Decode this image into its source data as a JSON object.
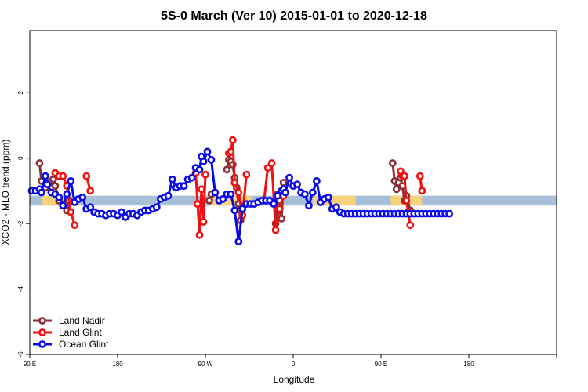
{
  "chart_data": {
    "type": "line",
    "title": "5S-0 March (Ver 10)   2015-01-01 to 2020-12-18",
    "xlabel": "Longitude",
    "ylabel": "XCO2 - MLO trend (ppm)",
    "xlim": [
      -90,
      180
    ],
    "ylim": [
      -6,
      3.9
    ],
    "x_ticks": [
      {
        "value": -90,
        "label": "90 E"
      },
      {
        "value": -45,
        "label": "180"
      },
      {
        "value": 0,
        "label": "90 W"
      },
      {
        "value": 45,
        "label": "0"
      },
      {
        "value": 90,
        "label": "90 E"
      },
      {
        "value": 135,
        "label": "180"
      }
    ],
    "y_ticks": [
      {
        "value": -6,
        "label": "-6"
      },
      {
        "value": -4,
        "label": "-4"
      },
      {
        "value": -2,
        "label": "-2"
      },
      {
        "value": 0,
        "label": "0"
      },
      {
        "value": 2,
        "label": "2"
      }
    ],
    "reference_band": {
      "y_min": -1.45,
      "y_max": -1.15,
      "color": "#a7bfd9"
    },
    "highlight_band": {
      "color": "#f8d27a",
      "segments": [
        [
          -84,
          -69
        ],
        [
          3,
          24
        ],
        [
          55,
          77
        ],
        [
          95,
          111
        ]
      ]
    },
    "series": [
      {
        "name": "Land Nadir",
        "color": "#8b2f35",
        "segments": [
          {
            "x": [
              -85,
              -84,
              -82,
              -80,
              -78,
              -77,
              -75
            ],
            "y": [
              -0.15,
              -0.7,
              -0.9,
              -0.75,
              -0.65,
              -0.85,
              -1.3
            ]
          },
          {
            "x": [
              -71,
              -70
            ],
            "y": [
              -1.6,
              -1.3
            ]
          },
          {
            "x": [
              2,
              3
            ],
            "y": [
              -1.3,
              -1.1
            ]
          },
          {
            "x": [
              11,
              12,
              13,
              14,
              15,
              16,
              17,
              18
            ],
            "y": [
              -0.35,
              -0.05,
              -0.1,
              -0.2,
              -0.6,
              -0.9,
              -1.4,
              -1.9
            ]
          },
          {
            "x": [
              36,
              37,
              38,
              39,
              40
            ],
            "y": [
              -2.0,
              -1.1,
              -1.3,
              -1.85,
              -0.75
            ]
          },
          {
            "x": [
              96,
              97,
              98,
              99,
              100,
              101,
              102,
              103,
              105
            ],
            "y": [
              -0.15,
              -0.7,
              -0.95,
              -0.75,
              -0.6,
              -0.85,
              -1.3,
              -1.15,
              -1.6
            ]
          }
        ]
      },
      {
        "name": "Land Glint",
        "color": "#f20f0f",
        "segments": [
          {
            "x": [
              -77,
              -75,
              -73,
              -71,
              -69,
              -67
            ],
            "y": [
              -0.45,
              -0.55,
              -0.55,
              -0.85,
              -1.65,
              -2.05
            ]
          },
          {
            "x": [
              -61,
              -59
            ],
            "y": [
              -0.55,
              -1.0
            ]
          },
          {
            "x": [
              -5,
              -4,
              -3,
              -2,
              -1,
              0
            ],
            "y": [
              -0.45,
              -1.4,
              -2.35,
              -0.95,
              -1.95,
              -0.5
            ]
          },
          {
            "x": [
              12,
              13,
              14,
              15,
              17,
              19,
              21
            ],
            "y": [
              0.15,
              0.2,
              0.55,
              -0.75,
              -1.05,
              -1.75,
              -0.5
            ]
          },
          {
            "x": [
              30,
              32,
              34,
              36,
              38,
              40
            ],
            "y": [
              -1.3,
              -0.3,
              -0.15,
              -2.2,
              -1.55,
              -1.15
            ]
          },
          {
            "x": [
              100,
              101,
              102,
              103,
              104,
              105
            ],
            "y": [
              -0.4,
              -0.55,
              -0.55,
              -1.3,
              -1.65,
              -2.05
            ]
          },
          {
            "x": [
              110,
              111
            ],
            "y": [
              -0.55,
              -1.0
            ]
          }
        ]
      },
      {
        "name": "Ocean Glint",
        "color": "#0a0ae6",
        "segments": [
          {
            "x": [
              -89,
              -87,
              -85,
              -84,
              -82,
              -81,
              -79,
              -77,
              -75,
              -73,
              -71,
              -69,
              -67,
              -65,
              -63,
              -61,
              -59,
              -57,
              -55,
              -53,
              -51,
              -49,
              -47,
              -45,
              -43,
              -41,
              -39,
              -37,
              -35,
              -33,
              -31,
              -29,
              -27,
              -25,
              -23,
              -21,
              -19,
              -17,
              -15,
              -13,
              -11,
              -9,
              -7,
              -5,
              -3,
              -2,
              -1,
              1,
              3,
              5,
              7,
              9,
              11,
              13,
              15,
              17,
              19,
              21,
              23,
              25,
              27,
              29,
              31,
              33,
              35,
              37,
              39,
              40,
              41,
              43,
              45,
              47,
              49,
              51,
              53,
              55,
              57,
              59,
              61,
              63,
              65,
              67,
              69,
              71,
              73,
              75,
              77,
              79,
              81,
              83,
              85,
              87,
              89,
              91,
              93,
              95,
              97,
              99,
              101,
              103,
              105,
              107,
              109,
              111,
              113,
              115,
              117,
              119,
              121,
              123,
              125
            ],
            "y": [
              -1.0,
              -1.0,
              -0.95,
              -1.05,
              -0.55,
              -0.8,
              -1.05,
              -1.1,
              -1.2,
              -1.45,
              -1.1,
              -0.7,
              -1.35,
              -1.25,
              -1.2,
              -1.55,
              -1.5,
              -1.65,
              -1.7,
              -1.7,
              -1.75,
              -1.7,
              -1.7,
              -1.75,
              -1.65,
              -1.8,
              -1.7,
              -1.7,
              -1.75,
              -1.65,
              -1.6,
              -1.6,
              -1.55,
              -1.5,
              -1.25,
              -1.2,
              -1.15,
              -0.65,
              -0.9,
              -0.85,
              -0.85,
              -0.65,
              -0.6,
              -0.3,
              -0.35,
              0.05,
              -0.1,
              0.2,
              -0.05,
              -1.05,
              -1.3,
              -1.25,
              -1.1,
              -1.1,
              -1.6,
              -2.55,
              -1.55,
              -1.4,
              -1.4,
              -1.4,
              -1.35,
              -1.3,
              -1.3,
              -1.3,
              -1.4,
              -1.15,
              -1.0,
              -0.95,
              -1.05,
              -0.6,
              -0.85,
              -0.8,
              -1.05,
              -1.1,
              -1.45,
              -1.05,
              -0.7,
              -1.35,
              -1.25,
              -1.2,
              -1.55,
              -1.5,
              -1.65,
              -1.7,
              -1.7,
              -1.7,
              -1.7,
              -1.7,
              -1.7,
              -1.7,
              -1.7,
              -1.7,
              -1.7,
              -1.7,
              -1.7,
              -1.7,
              -1.7,
              -1.7,
              -1.7,
              -1.7,
              -1.7,
              -1.7,
              -1.7,
              -1.7,
              -1.7,
              -1.7,
              -1.7,
              -1.7,
              -1.7,
              -1.7,
              -1.7
            ]
          }
        ]
      }
    ],
    "legend": {
      "position": "bottom-left",
      "entries": [
        "Land Nadir",
        "Land Glint",
        "Ocean Glint"
      ]
    }
  }
}
